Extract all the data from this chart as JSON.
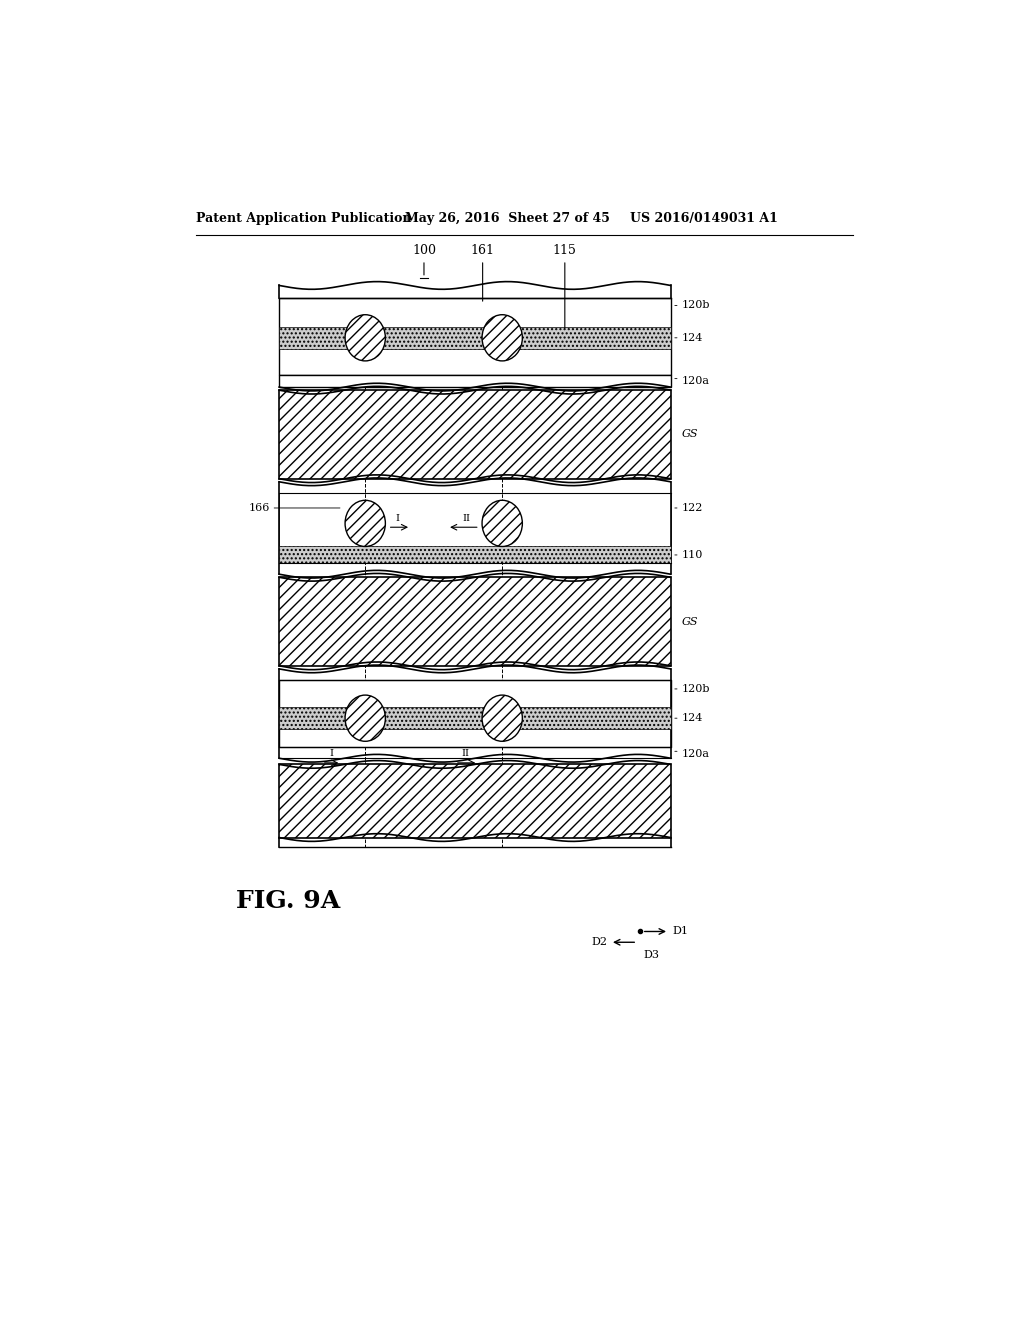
{
  "header_left": "Patent Application Publication",
  "header_center": "May 26, 2016  Sheet 27 of 45",
  "header_right": "US 2016/0149031 A1",
  "figure_label": "FIG. 9A",
  "bg_color": "#ffffff",
  "label_100": "100",
  "label_161": "161",
  "label_115": "115",
  "label_166": "166",
  "label_122": "122",
  "label_110": "110",
  "label_GS1": "GS",
  "label_GS2": "GS",
  "label_120b_top": "120b",
  "label_124_top": "124",
  "label_120a_top": "120a",
  "label_120b_bot": "120b",
  "label_124_bot": "124",
  "label_120a_bot": "120a",
  "label_D1": "D1",
  "label_D2": "D2",
  "label_D3": "D3"
}
